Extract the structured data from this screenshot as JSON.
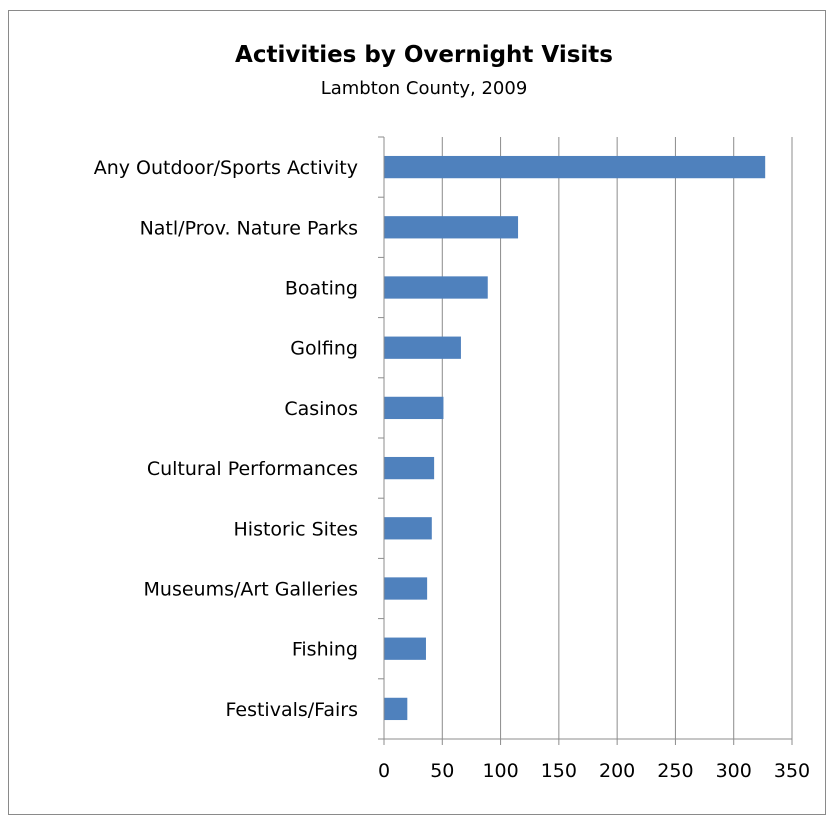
{
  "chart_data": {
    "type": "bar",
    "orientation": "horizontal",
    "title": "Activities by Overnight Visits",
    "subtitle": "Lambton County, 2009",
    "xlabel": "",
    "ylabel": "",
    "categories": [
      "Any Outdoor/Sports Activity",
      "Natl/Prov. Nature Parks",
      "Boating",
      "Golfing",
      "Casinos",
      "Cultural Performances",
      "Historic Sites",
      "Museums/Art Galleries",
      "Fishing",
      "Festivals/Fairs"
    ],
    "values": [
      327,
      115,
      89,
      66,
      51,
      43,
      41,
      37,
      36,
      20
    ],
    "xlim": [
      0,
      350
    ],
    "xticks": [
      0,
      50,
      100,
      150,
      200,
      250,
      300,
      350
    ],
    "grid": "vertical",
    "legend": "none",
    "bar_color": "#4f81bd"
  }
}
